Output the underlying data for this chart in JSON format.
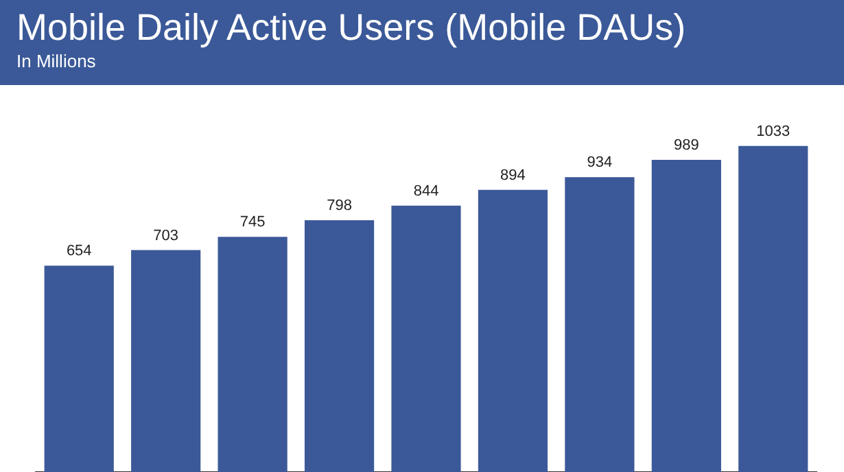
{
  "chart_data": {
    "type": "bar",
    "title": "Mobile Daily Active Users (Mobile DAUs)",
    "subtitle": "In Millions",
    "categories": [
      null,
      null,
      null,
      null,
      null,
      null,
      null,
      null,
      null
    ],
    "values": [
      654,
      703,
      745,
      798,
      844,
      894,
      934,
      989,
      1033
    ],
    "color": "#3b5998",
    "data_labels": true,
    "grid": false,
    "legend": false
  }
}
